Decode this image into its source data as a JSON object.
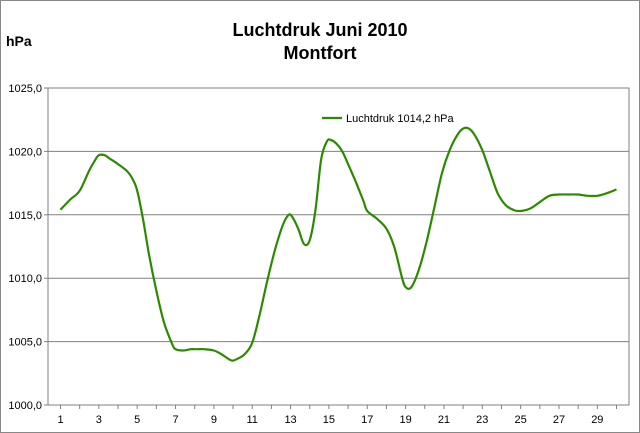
{
  "chart_data": {
    "type": "line",
    "title": "Luchtdruk Juni 2010",
    "subtitle": "Montfort",
    "ylabel": "hPa",
    "xlabel": "",
    "ylim": [
      1000,
      1025
    ],
    "xlim": [
      1,
      30
    ],
    "yticks": [
      "1000,0",
      "1005,0",
      "1010,0",
      "1015,0",
      "1020,0",
      "1025,0"
    ],
    "xticks": [
      "1",
      "3",
      "5",
      "7",
      "9",
      "11",
      "13",
      "15",
      "17",
      "19",
      "21",
      "23",
      "25",
      "27",
      "29"
    ],
    "grid": "horizontal",
    "legend_position": "top-right",
    "series": [
      {
        "name": "Luchtdruk 1014,2 hPa",
        "color": "#2d8a00",
        "x": [
          1,
          1.5,
          2,
          2.5,
          2.8,
          3,
          3.3,
          3.6,
          4,
          4.5,
          4.8,
          5,
          5.3,
          5.6,
          6,
          6.4,
          6.8,
          7,
          7.4,
          7.8,
          8,
          8.5,
          9,
          9.4,
          9.8,
          10,
          10.3,
          10.6,
          11,
          11.4,
          11.8,
          12.2,
          12.6,
          12.9,
          13.1,
          13.4,
          13.7,
          14,
          14.3,
          14.6,
          14.9,
          15.1,
          15.4,
          15.7,
          16,
          16.4,
          16.8,
          17,
          17.5,
          18,
          18.4,
          18.8,
          19,
          19.3,
          19.7,
          20.1,
          20.5,
          20.9,
          21.3,
          21.7,
          22,
          22.3,
          22.6,
          23,
          23.4,
          23.8,
          24.2,
          24.6,
          25,
          25.5,
          26,
          26.5,
          27,
          27.5,
          28,
          28.5,
          29,
          29.5,
          30
        ],
        "values": [
          1015.4,
          1016.2,
          1016.9,
          1018.5,
          1019.3,
          1019.7,
          1019.7,
          1019.4,
          1019.0,
          1018.4,
          1017.7,
          1016.9,
          1014.7,
          1012.0,
          1009.0,
          1006.5,
          1004.9,
          1004.4,
          1004.3,
          1004.4,
          1004.4,
          1004.4,
          1004.3,
          1004.0,
          1003.6,
          1003.5,
          1003.7,
          1004.0,
          1004.9,
          1007.2,
          1009.9,
          1012.3,
          1014.2,
          1015.0,
          1014.8,
          1013.9,
          1012.7,
          1013.0,
          1015.4,
          1019.4,
          1020.8,
          1020.9,
          1020.6,
          1020.0,
          1019.0,
          1017.6,
          1016.1,
          1015.3,
          1014.7,
          1013.9,
          1012.5,
          1010.1,
          1009.3,
          1009.3,
          1010.7,
          1012.9,
          1015.6,
          1018.3,
          1020.1,
          1021.3,
          1021.8,
          1021.8,
          1021.3,
          1020.1,
          1018.4,
          1016.7,
          1015.8,
          1015.4,
          1015.3,
          1015.5,
          1016.0,
          1016.5,
          1016.6,
          1016.6,
          1016.6,
          1016.5,
          1016.5,
          1016.7,
          1017.0
        ]
      }
    ]
  }
}
